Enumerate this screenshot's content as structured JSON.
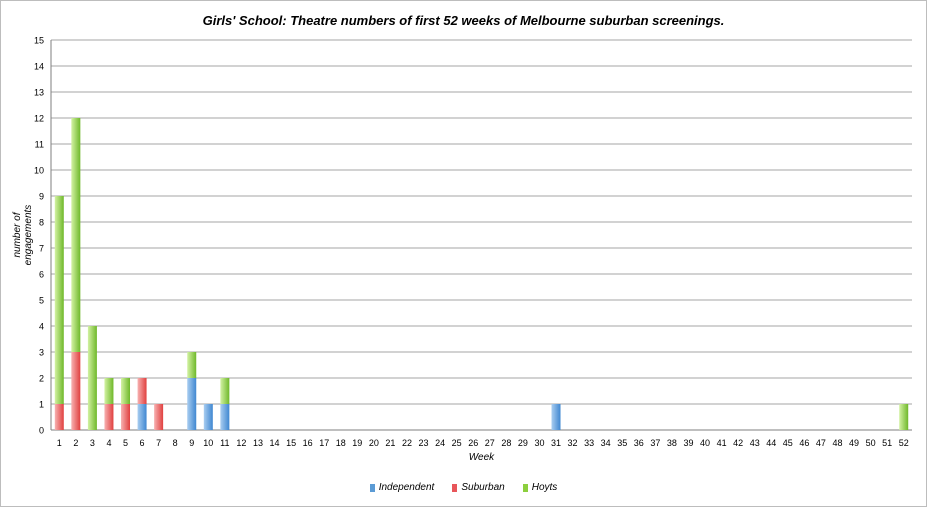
{
  "chart_data": {
    "type": "bar",
    "stacked": true,
    "title": "Girls' School: Theatre numbers of first 52 weeks of Melbourne suburban screenings.",
    "xlabel": "Week",
    "ylabel": "number of engagements",
    "ylim": [
      0,
      15
    ],
    "yticks": [
      "0",
      "1",
      "2",
      "3",
      "4",
      "5",
      "6",
      "7",
      "8",
      "9",
      "10",
      "11",
      "12",
      "13",
      "14",
      "15"
    ],
    "grid": true,
    "legend_position": "bottom",
    "categories": [
      "1",
      "2",
      "3",
      "4",
      "5",
      "6",
      "7",
      "8",
      "9",
      "10",
      "11",
      "12",
      "13",
      "14",
      "15",
      "16",
      "17",
      "18",
      "19",
      "20",
      "21",
      "22",
      "23",
      "24",
      "25",
      "26",
      "27",
      "28",
      "29",
      "30",
      "31",
      "32",
      "33",
      "34",
      "35",
      "36",
      "37",
      "38",
      "39",
      "40",
      "41",
      "42",
      "43",
      "44",
      "45",
      "46",
      "47",
      "48",
      "49",
      "50",
      "51",
      "52"
    ],
    "series": [
      {
        "name": "Independent",
        "color": "#5b9bd5",
        "values": [
          0,
          0,
          0,
          0,
          0,
          1,
          0,
          0,
          2,
          1,
          1,
          0,
          0,
          0,
          0,
          0,
          0,
          0,
          0,
          0,
          0,
          0,
          0,
          0,
          0,
          0,
          0,
          0,
          0,
          0,
          1,
          0,
          0,
          0,
          0,
          0,
          0,
          0,
          0,
          0,
          0,
          0,
          0,
          0,
          0,
          0,
          0,
          0,
          0,
          0,
          0,
          0
        ]
      },
      {
        "name": "Suburban",
        "color": "#e8565a",
        "values": [
          1,
          3,
          0,
          1,
          1,
          1,
          1,
          0,
          0,
          0,
          0,
          0,
          0,
          0,
          0,
          0,
          0,
          0,
          0,
          0,
          0,
          0,
          0,
          0,
          0,
          0,
          0,
          0,
          0,
          0,
          0,
          0,
          0,
          0,
          0,
          0,
          0,
          0,
          0,
          0,
          0,
          0,
          0,
          0,
          0,
          0,
          0,
          0,
          0,
          0,
          0,
          0
        ]
      },
      {
        "name": "Hoyts",
        "color": "#8ccf3e",
        "values": [
          8,
          9,
          4,
          1,
          1,
          0,
          0,
          0,
          1,
          0,
          1,
          0,
          0,
          0,
          0,
          0,
          0,
          0,
          0,
          0,
          0,
          0,
          0,
          0,
          0,
          0,
          0,
          0,
          0,
          0,
          0,
          0,
          0,
          0,
          0,
          0,
          0,
          0,
          0,
          0,
          0,
          0,
          0,
          0,
          0,
          0,
          0,
          0,
          0,
          0,
          0,
          1
        ]
      }
    ]
  }
}
